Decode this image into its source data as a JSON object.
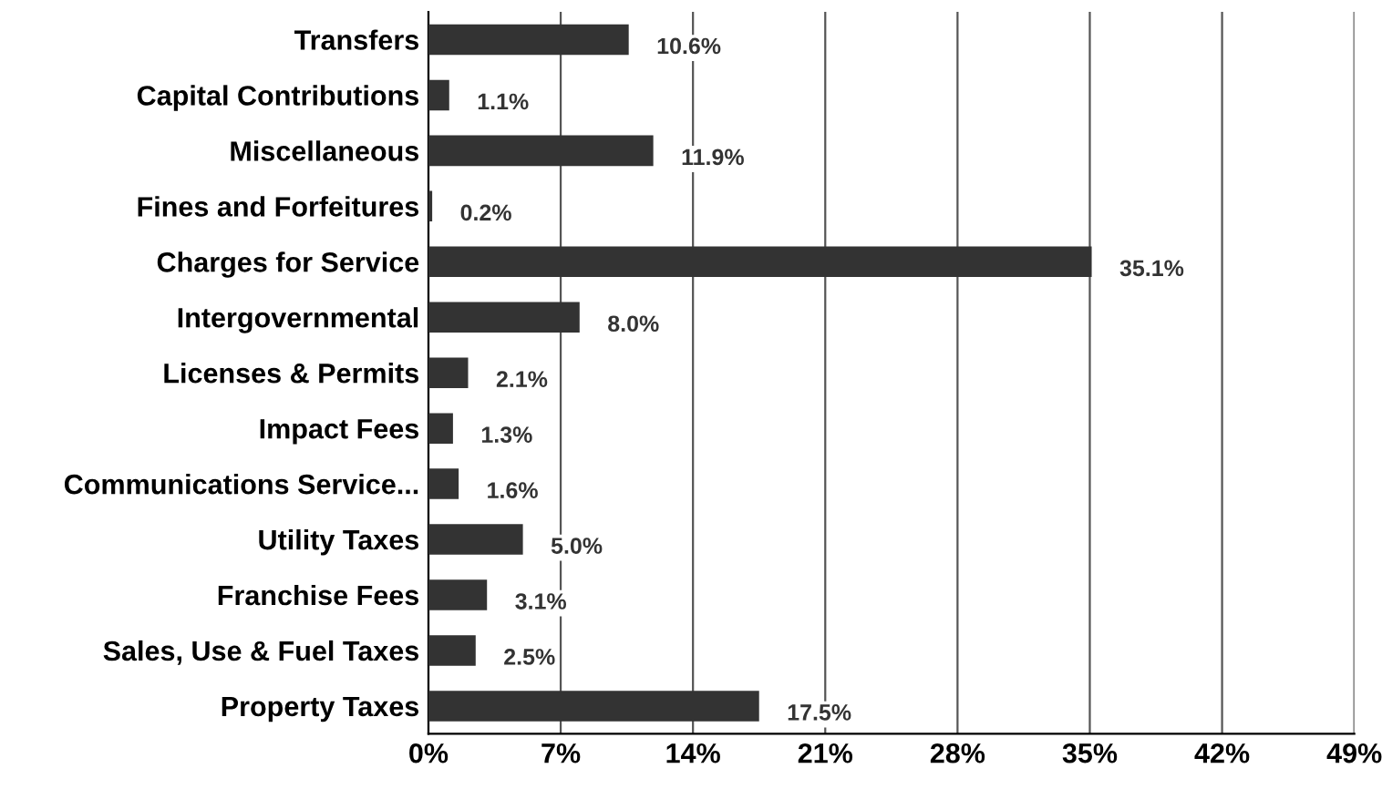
{
  "chart_data": {
    "type": "bar",
    "orientation": "horizontal",
    "categories": [
      "Transfers",
      "Capital Contributions",
      "Miscellaneous",
      "Fines and Forfeitures",
      "Charges for Service",
      "Intergovernmental",
      "Licenses & Permits",
      "Impact Fees",
      "Communications Service...",
      "Utility Taxes",
      "Franchise Fees",
      "Sales, Use & Fuel Taxes",
      "Property Taxes"
    ],
    "values": [
      10.6,
      1.1,
      11.9,
      0.2,
      35.1,
      8.0,
      2.1,
      1.3,
      1.6,
      5.0,
      3.1,
      2.5,
      17.5
    ],
    "value_labels": [
      "10.6%",
      "1.1%",
      "11.9%",
      "0.2%",
      "35.1%",
      "8.0%",
      "2.1%",
      "1.3%",
      "1.6%",
      "5.0%",
      "3.1%",
      "2.5%",
      "17.5%"
    ],
    "color": "#333333",
    "xlim": [
      0,
      49
    ],
    "xticks": [
      {
        "value": 0,
        "label": "0%"
      },
      {
        "value": 7,
        "label": "7%"
      },
      {
        "value": 14,
        "label": "14%"
      },
      {
        "value": 21,
        "label": "21%"
      },
      {
        "value": 28,
        "label": "28%"
      },
      {
        "value": 35,
        "label": "35%"
      },
      {
        "value": 42,
        "label": "42%"
      },
      {
        "value": 49,
        "label": "49%"
      }
    ],
    "grid": "x",
    "legend": false
  }
}
